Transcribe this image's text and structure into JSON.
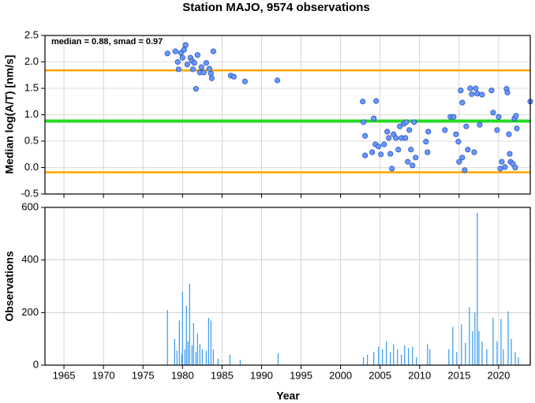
{
  "chart_data": [
    {
      "type": "scatter",
      "title": "Station MAJO, 9574 observations",
      "annotation": "median = 0.88, smad = 0.97",
      "y_label": "Median log(A/T) [nm/s]",
      "color": "#6699ff",
      "xlim": [
        1962.6,
        2024.0
      ],
      "ylim": [
        -0.5,
        2.5
      ],
      "yticks": [
        -0.5,
        {
          "value": 0,
          "label": "0.0"
        },
        0.5,
        {
          "value": 1,
          "label": "1.0"
        },
        1.5,
        {
          "value": 2,
          "label": "2.0"
        },
        2.5
      ],
      "grid": true,
      "reference_lines": [
        {
          "value": 1.84,
          "color": "#ffa500"
        },
        {
          "value": 0.88,
          "color": "#22dd22"
        },
        {
          "value": -0.09,
          "color": "#ffa500"
        }
      ],
      "x": [
        1978.1,
        1979.1,
        1979.4,
        1979.5,
        1979.8,
        1980.0,
        1980.2,
        1980.4,
        1980.6,
        1981.0,
        1981.2,
        1981.3,
        1981.5,
        1981.7,
        1981.9,
        1982.2,
        1982.4,
        1982.7,
        1983.0,
        1983.4,
        1983.6,
        1983.7,
        1983.9,
        1986.1,
        1986.5,
        1987.9,
        1992.0,
        2002.8,
        2002.9,
        2003.1,
        2003.1,
        2004.5,
        2004.2,
        2004.0,
        2004.4,
        2004.8,
        2005.1,
        2005.5,
        2005.9,
        2006.1,
        2006.3,
        2006.5,
        2006.7,
        2007.0,
        2007.3,
        2007.5,
        2007.7,
        2008.0,
        2008.2,
        2008.3,
        2008.5,
        2008.7,
        2008.9,
        2009.1,
        2009.3,
        2009.5,
        2010.8,
        2011.0,
        2011.1,
        2013.2,
        2013.9,
        2014.3,
        2014.6,
        2014.9,
        2015.0,
        2015.2,
        2015.4,
        2015.4,
        2015.7,
        2015.9,
        2016.1,
        2016.4,
        2016.6,
        2016.9,
        2017.1,
        2017.3,
        2017.6,
        2017.9,
        2019.1,
        2019.3,
        2019.8,
        2020.0,
        2020.2,
        2020.4,
        2020.8,
        2021.0,
        2021.1,
        2021.3,
        2021.4,
        2021.5,
        2021.8,
        2022.0,
        2022.1,
        2022.2,
        2022.3,
        2024.0
      ],
      "values": [
        2.16,
        2.2,
        2.0,
        1.86,
        2.17,
        2.08,
        2.23,
        2.32,
        1.95,
        2.08,
        2.02,
        1.86,
        1.98,
        1.49,
        2.13,
        1.8,
        1.9,
        1.8,
        1.98,
        1.87,
        1.78,
        1.69,
        2.2,
        1.74,
        1.72,
        1.63,
        1.65,
        1.25,
        0.86,
        0.6,
        0.23,
        1.26,
        0.93,
        0.29,
        0.44,
        0.4,
        0.25,
        0.44,
        0.68,
        0.56,
        0.26,
        -0.02,
        0.63,
        0.56,
        0.34,
        0.78,
        0.56,
        0.83,
        0.56,
        0.86,
        0.11,
        0.71,
        0.34,
        0.04,
        0.86,
        0.19,
        0.49,
        0.29,
        0.68,
        0.71,
        0.96,
        0.96,
        0.63,
        0.49,
        0.11,
        1.46,
        1.23,
        0.19,
        -0.05,
        0.78,
        0.34,
        1.5,
        1.39,
        0.29,
        1.5,
        1.4,
        0.81,
        1.38,
        1.46,
        1.04,
        0.71,
        0.96,
        -0.02,
        0.11,
        0.01,
        1.49,
        1.42,
        0.63,
        0.26,
        0.11,
        0.07,
        0.93,
        0.0,
        0.98,
        0.74,
        1.25
      ]
    },
    {
      "type": "bar",
      "x_label": "Year",
      "y_label": "Observations",
      "color": "#3399ee",
      "xlim": [
        1962.6,
        2024.0
      ],
      "xticks": [
        1965,
        1970,
        1975,
        1980,
        1985,
        1990,
        1995,
        2000,
        2005,
        2010,
        2015,
        2020
      ],
      "ylim": [
        0,
        600
      ],
      "yticks": [
        0,
        200,
        400,
        600
      ],
      "grid": true,
      "x": [
        1978.1,
        1979.0,
        1979.3,
        1979.6,
        1979.9,
        1980.0,
        1980.3,
        1980.5,
        1980.7,
        1980.9,
        1981.2,
        1981.4,
        1981.7,
        1981.9,
        1982.2,
        1982.5,
        1983.0,
        1983.3,
        1983.6,
        1983.9,
        1984.5,
        1986.0,
        1987.3,
        1992.1,
        2002.9,
        2003.4,
        2004.2,
        2004.8,
        2005.3,
        2005.8,
        2006.3,
        2006.7,
        2007.2,
        2007.7,
        2008.1,
        2008.6,
        2009.1,
        2009.6,
        2011.0,
        2011.3,
        2013.7,
        2014.2,
        2014.7,
        2015.3,
        2015.8,
        2016.3,
        2016.7,
        2017.0,
        2017.3,
        2017.5,
        2017.9,
        2018.5,
        2019.3,
        2019.8,
        2020.3,
        2020.6,
        2021.2,
        2021.6,
        2022.1,
        2022.5,
        2024.0
      ],
      "values": [
        210,
        100,
        55,
        170,
        40,
        280,
        60,
        225,
        90,
        310,
        75,
        160,
        50,
        120,
        80,
        60,
        55,
        180,
        170,
        60,
        25,
        40,
        20,
        45,
        30,
        40,
        50,
        70,
        60,
        90,
        50,
        80,
        60,
        40,
        75,
        65,
        70,
        30,
        80,
        60,
        60,
        145,
        50,
        155,
        85,
        220,
        130,
        200,
        580,
        130,
        90,
        60,
        180,
        90,
        175,
        60,
        205,
        100,
        50,
        30,
        40
      ]
    }
  ]
}
